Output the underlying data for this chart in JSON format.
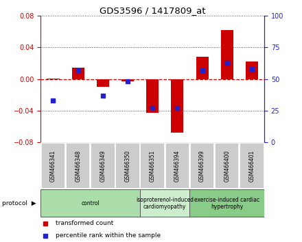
{
  "title": "GDS3596 / 1417809_at",
  "samples": [
    "GSM466341",
    "GSM466348",
    "GSM466349",
    "GSM466350",
    "GSM466351",
    "GSM466394",
    "GSM466399",
    "GSM466400",
    "GSM466401"
  ],
  "red_values": [
    0.001,
    0.014,
    -0.01,
    -0.003,
    -0.043,
    -0.068,
    0.028,
    0.062,
    0.022
  ],
  "blue_values_pct": [
    33,
    57,
    37,
    48,
    27,
    27,
    57,
    63,
    58
  ],
  "ylim_left": [
    -0.08,
    0.08
  ],
  "ylim_right": [
    0,
    100
  ],
  "yticks_left": [
    -0.08,
    -0.04,
    0.0,
    0.04,
    0.08
  ],
  "yticks_right": [
    0,
    25,
    50,
    75,
    100
  ],
  "red_color": "#cc0000",
  "blue_color": "#2222cc",
  "dashed_zero_color": "#cc0000",
  "dotted_grid_color": "#555555",
  "protocol_groups": [
    {
      "label": "control",
      "indices": [
        0,
        1,
        2,
        3
      ],
      "color": "#aaddaa"
    },
    {
      "label": "isoproterenol-induced\ncardiomyopathy",
      "indices": [
        4,
        5
      ],
      "color": "#cceecc"
    },
    {
      "label": "exercise-induced cardiac\nhypertrophy",
      "indices": [
        6,
        7,
        8
      ],
      "color": "#88cc88"
    }
  ],
  "legend_red": "transformed count",
  "legend_blue": "percentile rank within the sample",
  "bar_width": 0.5
}
